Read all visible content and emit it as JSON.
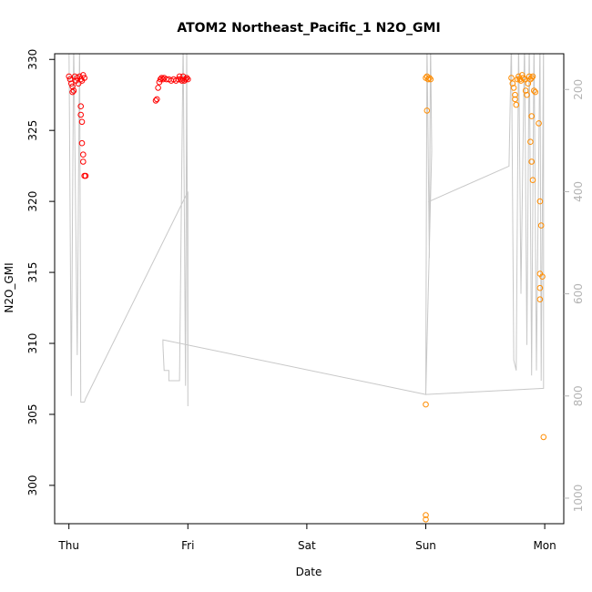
{
  "chart_data": {
    "type": "scatter",
    "title": "ATOM2 Northeast_Pacific_1 N2O_GMI",
    "xlabel": "Date",
    "ylabel": "N2O_GMI",
    "x_ticks": [
      "Thu",
      "Fri",
      "Sat",
      "Sun",
      "Mon"
    ],
    "x_tick_values": [
      0,
      1,
      2,
      3,
      4
    ],
    "xlim": [
      -0.12,
      4.16
    ],
    "ylim": [
      297.3,
      330.4
    ],
    "y_ticks": [
      300,
      305,
      310,
      315,
      320,
      325,
      330
    ],
    "y2_ticks": [
      200,
      400,
      600,
      800,
      1000
    ],
    "y2lim": [
      1050,
      130
    ],
    "grid": false,
    "series": [
      {
        "color": "#ff0000",
        "points": [
          [
            0.0,
            328.8
          ],
          [
            0.01,
            328.6
          ],
          [
            0.02,
            328.3
          ],
          [
            0.03,
            328.1
          ],
          [
            0.03,
            327.7
          ],
          [
            0.04,
            327.8
          ],
          [
            0.05,
            328.8
          ],
          [
            0.06,
            328.5
          ],
          [
            0.07,
            328.7
          ],
          [
            0.08,
            328.3
          ],
          [
            0.09,
            328.8
          ],
          [
            0.1,
            328.6
          ],
          [
            0.11,
            328.5
          ],
          [
            0.12,
            328.9
          ],
          [
            0.13,
            328.7
          ],
          [
            0.1,
            326.7
          ],
          [
            0.1,
            326.1
          ],
          [
            0.11,
            325.6
          ],
          [
            0.11,
            324.1
          ],
          [
            0.12,
            323.3
          ],
          [
            0.12,
            322.8
          ],
          [
            0.13,
            321.8
          ],
          [
            0.14,
            321.8
          ],
          [
            0.73,
            327.1
          ],
          [
            0.74,
            327.2
          ],
          [
            0.75,
            328.0
          ],
          [
            0.76,
            328.4
          ],
          [
            0.77,
            328.6
          ],
          [
            0.78,
            328.7
          ],
          [
            0.79,
            328.6
          ],
          [
            0.8,
            328.7
          ],
          [
            0.82,
            328.6
          ],
          [
            0.84,
            328.6
          ],
          [
            0.86,
            328.5
          ],
          [
            0.88,
            328.6
          ],
          [
            0.9,
            328.5
          ],
          [
            0.92,
            328.6
          ],
          [
            0.93,
            328.8
          ],
          [
            0.94,
            328.6
          ],
          [
            0.95,
            328.5
          ],
          [
            0.96,
            328.8
          ],
          [
            0.97,
            328.5
          ],
          [
            0.98,
            328.6
          ],
          [
            0.99,
            328.7
          ],
          [
            1.0,
            328.6
          ]
        ]
      },
      {
        "color": "#ff8c00",
        "points": [
          [
            3.0,
            328.7
          ],
          [
            3.01,
            328.8
          ],
          [
            3.02,
            328.6
          ],
          [
            3.03,
            328.7
          ],
          [
            3.04,
            328.6
          ],
          [
            3.01,
            326.4
          ],
          [
            3.0,
            305.7
          ],
          [
            3.0,
            297.9
          ],
          [
            3.0,
            297.6
          ],
          [
            3.72,
            328.7
          ],
          [
            3.73,
            328.3
          ],
          [
            3.74,
            328.0
          ],
          [
            3.75,
            327.5
          ],
          [
            3.75,
            327.2
          ],
          [
            3.76,
            326.8
          ],
          [
            3.77,
            328.6
          ],
          [
            3.78,
            328.8
          ],
          [
            3.79,
            328.6
          ],
          [
            3.8,
            328.5
          ],
          [
            3.81,
            328.9
          ],
          [
            3.82,
            328.7
          ],
          [
            3.83,
            328.6
          ],
          [
            3.84,
            327.8
          ],
          [
            3.85,
            327.5
          ],
          [
            3.86,
            328.3
          ],
          [
            3.87,
            328.8
          ],
          [
            3.88,
            328.6
          ],
          [
            3.89,
            328.7
          ],
          [
            3.9,
            328.8
          ],
          [
            3.91,
            327.8
          ],
          [
            3.92,
            327.7
          ],
          [
            3.89,
            326.0
          ],
          [
            3.88,
            324.2
          ],
          [
            3.89,
            322.8
          ],
          [
            3.9,
            321.5
          ],
          [
            3.95,
            325.5
          ],
          [
            3.96,
            320.0
          ],
          [
            3.97,
            318.3
          ],
          [
            3.96,
            314.9
          ],
          [
            3.98,
            314.7
          ],
          [
            3.96,
            313.9
          ],
          [
            3.96,
            313.1
          ],
          [
            3.99,
            303.4
          ]
        ]
      }
    ],
    "altitude_line": {
      "color": "#c8c8c8",
      "points": [
        [
          0.0,
          100
        ],
        [
          0.02,
          800
        ],
        [
          0.04,
          100
        ],
        [
          0.07,
          720
        ],
        [
          0.09,
          100
        ],
        [
          0.1,
          812
        ],
        [
          0.13,
          812
        ],
        [
          0.14,
          805
        ],
        [
          1.0,
          400
        ],
        [
          1.0,
          820
        ],
        [
          0.99,
          100
        ],
        [
          0.98,
          780
        ],
        [
          0.96,
          100
        ],
        [
          0.93,
          770
        ],
        [
          0.84,
          770
        ],
        [
          0.84,
          750
        ],
        [
          0.8,
          750
        ],
        [
          0.79,
          700
        ],
        [
          0.79,
          690
        ],
        [
          3.0,
          797
        ],
        [
          3.01,
          100
        ],
        [
          3.03,
          530
        ],
        [
          3.04,
          100
        ],
        [
          3.05,
          320
        ],
        [
          3.0,
          797
        ],
        [
          3.99,
          785
        ],
        [
          3.99,
          100
        ],
        [
          3.97,
          770
        ],
        [
          3.96,
          100
        ],
        [
          3.93,
          750
        ],
        [
          3.91,
          100
        ],
        [
          3.89,
          760
        ],
        [
          3.87,
          100
        ],
        [
          3.85,
          700
        ],
        [
          3.83,
          100
        ],
        [
          3.8,
          600
        ],
        [
          3.78,
          100
        ],
        [
          3.76,
          750
        ],
        [
          3.74,
          730
        ],
        [
          3.72,
          100
        ],
        [
          3.7,
          350
        ],
        [
          3.02,
          420
        ]
      ]
    }
  }
}
